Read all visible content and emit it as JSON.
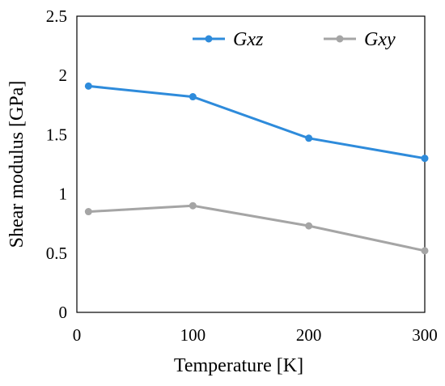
{
  "chart_data": {
    "type": "line",
    "xlabel": "Temperature [K]",
    "ylabel": "Shear modulus [GPa]",
    "xlim": [
      0,
      300
    ],
    "ylim": [
      0,
      2.5
    ],
    "xticks": [
      "0",
      "100",
      "200",
      "300"
    ],
    "yticks": [
      "0",
      "0.5",
      "1",
      "1.5",
      "2",
      "2.5"
    ],
    "grid": false,
    "legend_position": "top-right",
    "series": [
      {
        "name": "Gxz",
        "color": "#2E8BDB",
        "x": [
          10,
          100,
          200,
          300
        ],
        "y": [
          1.91,
          1.82,
          1.47,
          1.3
        ]
      },
      {
        "name": "Gxy",
        "color": "#A5A5A5",
        "x": [
          10,
          100,
          200,
          300
        ],
        "y": [
          0.85,
          0.9,
          0.73,
          0.52
        ]
      }
    ]
  }
}
